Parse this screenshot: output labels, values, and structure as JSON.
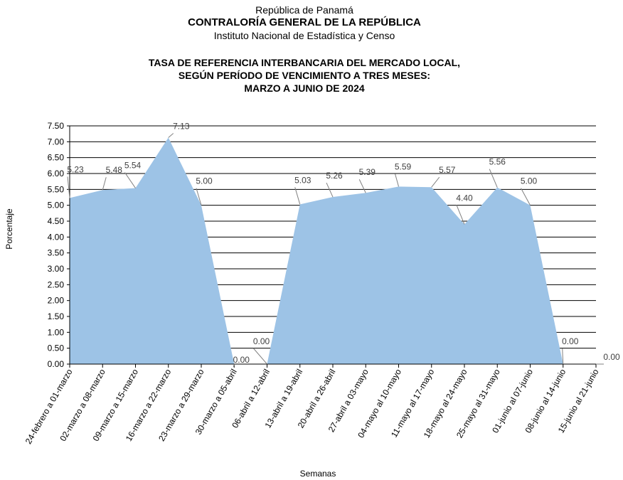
{
  "header": {
    "line1": "República de Panamá",
    "line2": "CONTRALORÍA GENERAL DE LA REPÚBLICA",
    "line3": "Instituto Nacional de Estadística y Censo"
  },
  "chart_data": {
    "type": "area",
    "title_lines": [
      "TASA DE REFERENCIA INTERBANCARIA DEL MERCADO LOCAL,",
      "SEGÚN PERÍODO DE VENCIMIENTO A TRES MESES:",
      "MARZO A JUNIO DE 2024"
    ],
    "xlabel": "Semanas",
    "ylabel": "Porcentaje",
    "ylim": [
      0,
      7.5
    ],
    "yticks": [
      "0.00",
      "0.50",
      "1.00",
      "1.50",
      "2.00",
      "2.50",
      "3.00",
      "3.50",
      "4.00",
      "4.50",
      "5.00",
      "5.50",
      "6.00",
      "6.50",
      "7.00",
      "7.50"
    ],
    "grid": true,
    "fill_color": "#9dc3e6",
    "categories": [
      "24-febrero a 01-marzo",
      "02-marzo a 08-marzo",
      "09-marzo a 15-marzo",
      "16-marzo a 22-marzo",
      "23-marzo a 29-marzo",
      "30-marzo a 05-abril",
      "06-abril a 12-abril",
      "13-abril a 19-abril",
      "20-abril a 26-abril",
      "27-abril a 03-mayo",
      "04-mayo al 10-mayo",
      "11-mayo al 17-mayo",
      "18-mayo al 24-mayo",
      "25-mayo al 31-mayo",
      "01-junio al 07-junio",
      "08-junio al 14-junio",
      "15-junio al 21-junio"
    ],
    "values": [
      5.23,
      5.48,
      5.54,
      7.13,
      5.0,
      0.0,
      0.0,
      5.03,
      5.26,
      5.39,
      5.59,
      5.57,
      4.4,
      5.56,
      5.0,
      0.0,
      0.0
    ],
    "labels": [
      "5.23",
      "5.48",
      "5.54",
      "7.13",
      "5.00",
      "0.00",
      "0.00",
      "5.03",
      "5.26",
      "5.39",
      "5.59",
      "5.57",
      "4.40",
      "5.56",
      "5.00",
      "0.00",
      "0.00"
    ]
  }
}
